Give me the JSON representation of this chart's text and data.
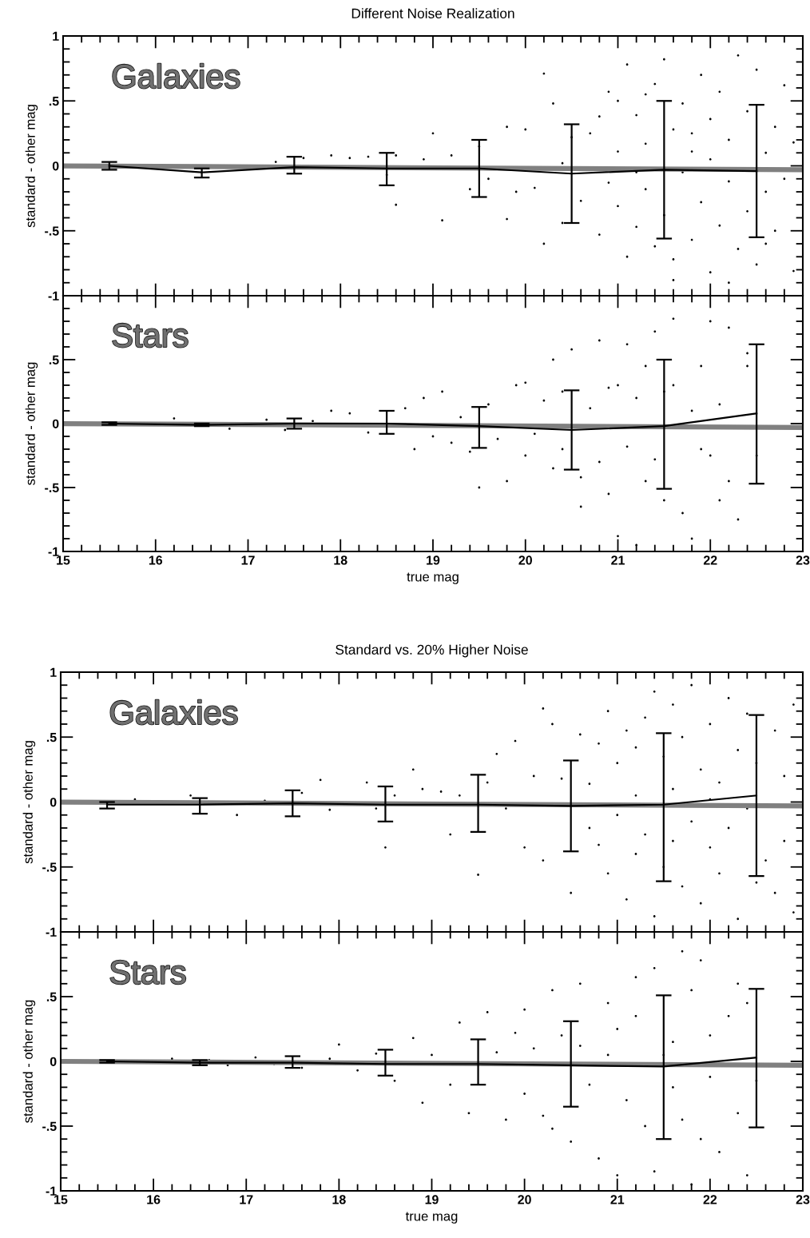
{
  "chart_data": [
    {
      "type": "scatter",
      "title": "Different Noise Realization",
      "ylabel": "standard - other mag",
      "annotations": [
        "Galaxies"
      ],
      "xlim": [
        15,
        23
      ],
      "ylim": [
        -1,
        1
      ],
      "tick_labels": "y",
      "grid": false,
      "xticks": [
        15,
        {
          "value": 15.2,
          "label": null
        },
        {
          "value": 15.4,
          "label": null
        },
        {
          "value": 15.6,
          "label": null
        },
        {
          "value": 15.8,
          "label": null
        },
        16,
        {
          "value": 16.2,
          "label": null
        },
        {
          "value": 16.4,
          "label": null
        },
        {
          "value": 16.6,
          "label": null
        },
        {
          "value": 16.8,
          "label": null
        },
        17,
        {
          "value": 17.2,
          "label": null
        },
        {
          "value": 17.4,
          "label": null
        },
        {
          "value": 17.6,
          "label": null
        },
        {
          "value": 17.8,
          "label": null
        },
        18,
        {
          "value": 18.2,
          "label": null
        },
        {
          "value": 18.4,
          "label": null
        },
        {
          "value": 18.6,
          "label": null
        },
        {
          "value": 18.8,
          "label": null
        },
        19,
        {
          "value": 19.2,
          "label": null
        },
        {
          "value": 19.4,
          "label": null
        },
        {
          "value": 19.6,
          "label": null
        },
        {
          "value": 19.8,
          "label": null
        },
        20,
        {
          "value": 20.2,
          "label": null
        },
        {
          "value": 20.4,
          "label": null
        },
        {
          "value": 20.6,
          "label": null
        },
        {
          "value": 20.8,
          "label": null
        },
        21,
        {
          "value": 21.2,
          "label": null
        },
        {
          "value": 21.4,
          "label": null
        },
        {
          "value": 21.6,
          "label": null
        },
        {
          "value": 21.8,
          "label": null
        },
        22,
        {
          "value": 22.2,
          "label": null
        },
        {
          "value": 22.4,
          "label": null
        },
        {
          "value": 22.6,
          "label": null
        },
        {
          "value": 22.8,
          "label": null
        },
        23
      ],
      "yticks": [
        {
          "value": -1,
          "label": "-1"
        },
        {
          "value": -0.9,
          "label": null
        },
        {
          "value": -0.8,
          "label": null
        },
        {
          "value": -0.7,
          "label": null
        },
        {
          "value": -0.6,
          "label": null
        },
        {
          "value": -0.5,
          "label": "-.5"
        },
        {
          "value": -0.4,
          "label": null
        },
        {
          "value": -0.3,
          "label": null
        },
        {
          "value": -0.2,
          "label": null
        },
        {
          "value": -0.1,
          "label": null
        },
        0,
        {
          "value": 0.1,
          "label": null
        },
        {
          "value": 0.2,
          "label": null
        },
        {
          "value": 0.3,
          "label": null
        },
        {
          "value": 0.4,
          "label": null
        },
        {
          "value": 0.5,
          "label": ".5"
        },
        {
          "value": 0.6,
          "label": null
        },
        {
          "value": 0.7,
          "label": null
        },
        {
          "value": 0.8,
          "label": null
        },
        {
          "value": 0.9,
          "label": null
        },
        1
      ],
      "series": [
        {
          "type": "scatter",
          "color": "#000000",
          "marker": "circle",
          "x": [
            17.3,
            17.6,
            17.9,
            18.1,
            18.3,
            18.6,
            18.9,
            18.5,
            18.6,
            19.0,
            19.2,
            19.1,
            19.5,
            19.4,
            19.6,
            19.8,
            19.9,
            19.8,
            20.0,
            20.1,
            20.2,
            20.3,
            20.2,
            20.4,
            20.4,
            20.5,
            20.6,
            20.7,
            20.8,
            20.8,
            20.9,
            20.9,
            21.0,
            21.0,
            21.1,
            21.1,
            21.2,
            21.2,
            21.3,
            21.3,
            21.4,
            21.4,
            21.5,
            21.5,
            21.6,
            21.6,
            21.7,
            21.7,
            21.8,
            21.8,
            21.9,
            21.9,
            22.0,
            22.0,
            22.1,
            22.1,
            22.2,
            22.2,
            22.3,
            22.3,
            22.4,
            22.4,
            22.5,
            22.5,
            22.6,
            22.6,
            22.7,
            22.7,
            22.8,
            22.8,
            22.9,
            22.9,
            21.3,
            21.6,
            22.0,
            21.2,
            22.6,
            22.2,
            21.0,
            21.8
          ],
          "values": [
            0.03,
            0.06,
            0.08,
            0.06,
            0.07,
            0.08,
            0.05,
            -0.07,
            -0.3,
            0.25,
            0.08,
            -0.42,
            0.15,
            -0.18,
            -0.1,
            0.3,
            -0.2,
            -0.41,
            0.28,
            -0.17,
            0.71,
            0.48,
            -0.6,
            0.02,
            -0.44,
            0.22,
            -0.27,
            0.25,
            0.38,
            -0.53,
            0.57,
            -0.13,
            0.11,
            -0.31,
            0.78,
            -0.7,
            0.39,
            -0.47,
            0.17,
            -0.18,
            0.63,
            -0.62,
            0.82,
            -0.38,
            0.28,
            -0.72,
            0.48,
            -0.05,
            0.11,
            -0.57,
            0.7,
            -0.28,
            0.36,
            -0.82,
            0.57,
            -0.46,
            0.2,
            -0.12,
            0.85,
            -0.64,
            0.42,
            -0.35,
            0.74,
            -0.76,
            0.1,
            -0.2,
            0.3,
            -0.5,
            0.62,
            -0.1,
            0.18,
            -0.81,
            0.55,
            -0.88,
            0.05,
            -0.05,
            -0.6,
            -0.9,
            0.5,
            0.25
          ]
        },
        {
          "type": "line",
          "color": "#808080",
          "marker": "none",
          "x": [
            15,
            23
          ],
          "values": [
            0,
            -0.03
          ]
        },
        {
          "type": "line",
          "color": "#000000",
          "marker": "none",
          "x": [
            15.5,
            16.5,
            17.5,
            18.5,
            19.5,
            20.5,
            21.5,
            22.5
          ],
          "values": [
            0,
            -0.05,
            -0.01,
            -0.02,
            -0.02,
            -0.06,
            -0.03,
            -0.04
          ],
          "errors": [
            [
              -0.03,
              0.03
            ],
            [
              -0.09,
              -0.02
            ],
            [
              -0.06,
              0.07
            ],
            [
              -0.15,
              0.1
            ],
            [
              -0.24,
              0.2
            ],
            [
              -0.44,
              0.32
            ],
            [
              -0.56,
              0.5
            ],
            [
              -0.55,
              0.47
            ]
          ]
        }
      ]
    },
    {
      "type": "scatter",
      "xlabel": "true mag",
      "ylabel": "standard - other mag",
      "annotations": [
        "Stars"
      ],
      "xlim": [
        15,
        23
      ],
      "ylim": [
        -1,
        1
      ],
      "grid": false,
      "xticks": [
        15,
        {
          "value": 15.2,
          "label": null
        },
        {
          "value": 15.4,
          "label": null
        },
        {
          "value": 15.6,
          "label": null
        },
        {
          "value": 15.8,
          "label": null
        },
        16,
        {
          "value": 16.2,
          "label": null
        },
        {
          "value": 16.4,
          "label": null
        },
        {
          "value": 16.6,
          "label": null
        },
        {
          "value": 16.8,
          "label": null
        },
        17,
        {
          "value": 17.2,
          "label": null
        },
        {
          "value": 17.4,
          "label": null
        },
        {
          "value": 17.6,
          "label": null
        },
        {
          "value": 17.8,
          "label": null
        },
        18,
        {
          "value": 18.2,
          "label": null
        },
        {
          "value": 18.4,
          "label": null
        },
        {
          "value": 18.6,
          "label": null
        },
        {
          "value": 18.8,
          "label": null
        },
        19,
        {
          "value": 19.2,
          "label": null
        },
        {
          "value": 19.4,
          "label": null
        },
        {
          "value": 19.6,
          "label": null
        },
        {
          "value": 19.8,
          "label": null
        },
        20,
        {
          "value": 20.2,
          "label": null
        },
        {
          "value": 20.4,
          "label": null
        },
        {
          "value": 20.6,
          "label": null
        },
        {
          "value": 20.8,
          "label": null
        },
        21,
        {
          "value": 21.2,
          "label": null
        },
        {
          "value": 21.4,
          "label": null
        },
        {
          "value": 21.6,
          "label": null
        },
        {
          "value": 21.8,
          "label": null
        },
        22,
        {
          "value": 22.2,
          "label": null
        },
        {
          "value": 22.4,
          "label": null
        },
        {
          "value": 22.6,
          "label": null
        },
        {
          "value": 22.8,
          "label": null
        },
        23
      ],
      "yticks": [
        {
          "value": -1,
          "label": "-1"
        },
        {
          "value": -0.9,
          "label": null
        },
        {
          "value": -0.8,
          "label": null
        },
        {
          "value": -0.7,
          "label": null
        },
        {
          "value": -0.6,
          "label": null
        },
        {
          "value": -0.5,
          "label": "-.5"
        },
        {
          "value": -0.4,
          "label": null
        },
        {
          "value": -0.3,
          "label": null
        },
        {
          "value": -0.2,
          "label": null
        },
        {
          "value": -0.1,
          "label": null
        },
        0,
        {
          "value": 0.1,
          "label": null
        },
        {
          "value": 0.2,
          "label": null
        },
        {
          "value": 0.3,
          "label": null
        },
        {
          "value": 0.4,
          "label": null
        },
        {
          "value": 0.5,
          "label": ".5"
        },
        {
          "value": 0.6,
          "label": null
        },
        {
          "value": 0.7,
          "label": null
        },
        {
          "value": 0.8,
          "label": null
        },
        {
          "value": 0.9,
          "label": null
        },
        {
          "value": 1,
          "label": null
        }
      ],
      "series": [
        {
          "type": "scatter",
          "color": "#000000",
          "marker": "circle",
          "x": [
            16.2,
            16.8,
            17.2,
            17.4,
            17.7,
            17.9,
            18.1,
            18.3,
            18.7,
            18.8,
            18.9,
            19.0,
            19.1,
            19.2,
            19.3,
            19.4,
            19.5,
            19.6,
            19.7,
            19.8,
            19.9,
            20.0,
            20.0,
            20.1,
            20.2,
            20.3,
            20.3,
            20.4,
            20.4,
            20.5,
            20.6,
            20.6,
            20.7,
            20.8,
            20.8,
            20.9,
            21.0,
            21.0,
            21.1,
            21.1,
            21.2,
            21.2,
            21.3,
            21.3,
            21.4,
            21.4,
            21.5,
            21.6,
            21.6,
            21.7,
            21.8,
            21.8,
            21.9,
            22.0,
            22.0,
            22.1,
            22.1,
            22.2,
            22.3,
            22.4,
            22.4,
            22.5,
            20.9,
            21.5,
            22.2,
            21.9
          ],
          "values": [
            0.04,
            -0.04,
            0.03,
            -0.05,
            0.02,
            0.1,
            0.08,
            -0.07,
            0.12,
            -0.2,
            0.2,
            -0.1,
            0.25,
            -0.15,
            0.05,
            -0.22,
            -0.5,
            0.15,
            -0.12,
            -0.45,
            0.3,
            0.32,
            -0.25,
            -0.08,
            0.18,
            0.5,
            -0.35,
            0.25,
            -0.2,
            0.58,
            -0.42,
            -0.65,
            0.12,
            -0.3,
            0.65,
            -0.55,
            0.3,
            -0.88,
            -0.18,
            0.62,
            0.2,
            -0.95,
            -0.45,
            0.45,
            0.72,
            -0.28,
            -0.6,
            0.3,
            0.82,
            -0.7,
            0.1,
            -0.9,
            0.45,
            0.8,
            -0.25,
            -0.6,
            0.15,
            0.75,
            -0.75,
            0.55,
            0.45,
            -0.25,
            0.28,
            0.25,
            -0.45,
            -0.2
          ]
        },
        {
          "type": "line",
          "color": "#808080",
          "marker": "none",
          "x": [
            15,
            23
          ],
          "values": [
            0,
            -0.03
          ]
        },
        {
          "type": "line",
          "color": "#000000",
          "marker": "none",
          "x": [
            15.5,
            16.5,
            17.5,
            18.5,
            19.5,
            20.5,
            21.5,
            22.5
          ],
          "values": [
            0,
            -0.01,
            0,
            0,
            -0.02,
            -0.05,
            -0.02,
            0.08
          ],
          "errors": [
            [
              -0.01,
              0.01
            ],
            [
              -0.02,
              0
            ],
            [
              -0.04,
              0.04
            ],
            [
              -0.08,
              0.1
            ],
            [
              -0.19,
              0.13
            ],
            [
              -0.36,
              0.26
            ],
            [
              -0.51,
              0.5
            ],
            [
              -0.47,
              0.62
            ]
          ]
        }
      ]
    },
    {
      "type": "scatter",
      "title": "Standard vs. 20% Higher Noise",
      "ylabel": "standard - other mag",
      "annotations": [
        "Galaxies"
      ],
      "xlim": [
        15,
        23
      ],
      "ylim": [
        -1,
        1
      ],
      "tick_labels": "y",
      "grid": false,
      "xticks": [
        15,
        {
          "value": 15.2,
          "label": null
        },
        {
          "value": 15.4,
          "label": null
        },
        {
          "value": 15.6,
          "label": null
        },
        {
          "value": 15.8,
          "label": null
        },
        16,
        {
          "value": 16.2,
          "label": null
        },
        {
          "value": 16.4,
          "label": null
        },
        {
          "value": 16.6,
          "label": null
        },
        {
          "value": 16.8,
          "label": null
        },
        17,
        {
          "value": 17.2,
          "label": null
        },
        {
          "value": 17.4,
          "label": null
        },
        {
          "value": 17.6,
          "label": null
        },
        {
          "value": 17.8,
          "label": null
        },
        18,
        {
          "value": 18.2,
          "label": null
        },
        {
          "value": 18.4,
          "label": null
        },
        {
          "value": 18.6,
          "label": null
        },
        {
          "value": 18.8,
          "label": null
        },
        19,
        {
          "value": 19.2,
          "label": null
        },
        {
          "value": 19.4,
          "label": null
        },
        {
          "value": 19.6,
          "label": null
        },
        {
          "value": 19.8,
          "label": null
        },
        20,
        {
          "value": 20.2,
          "label": null
        },
        {
          "value": 20.4,
          "label": null
        },
        {
          "value": 20.6,
          "label": null
        },
        {
          "value": 20.8,
          "label": null
        },
        21,
        {
          "value": 21.2,
          "label": null
        },
        {
          "value": 21.4,
          "label": null
        },
        {
          "value": 21.6,
          "label": null
        },
        {
          "value": 21.8,
          "label": null
        },
        22,
        {
          "value": 22.2,
          "label": null
        },
        {
          "value": 22.4,
          "label": null
        },
        {
          "value": 22.6,
          "label": null
        },
        {
          "value": 22.8,
          "label": null
        },
        23
      ],
      "yticks": [
        {
          "value": -1,
          "label": "-1"
        },
        {
          "value": -0.9,
          "label": null
        },
        {
          "value": -0.8,
          "label": null
        },
        {
          "value": -0.7,
          "label": null
        },
        {
          "value": -0.6,
          "label": null
        },
        {
          "value": -0.5,
          "label": "-.5"
        },
        {
          "value": -0.4,
          "label": null
        },
        {
          "value": -0.3,
          "label": null
        },
        {
          "value": -0.2,
          "label": null
        },
        {
          "value": -0.1,
          "label": null
        },
        0,
        {
          "value": 0.1,
          "label": null
        },
        {
          "value": 0.2,
          "label": null
        },
        {
          "value": 0.3,
          "label": null
        },
        {
          "value": 0.4,
          "label": null
        },
        {
          "value": 0.5,
          "label": ".5"
        },
        {
          "value": 0.6,
          "label": null
        },
        {
          "value": 0.7,
          "label": null
        },
        {
          "value": 0.8,
          "label": null
        },
        {
          "value": 0.9,
          "label": null
        },
        1
      ],
      "series": [
        {
          "type": "scatter",
          "color": "#000000",
          "marker": "circle",
          "x": [
            15.8,
            16.4,
            16.9,
            17.2,
            17.6,
            17.8,
            17.9,
            18.3,
            18.4,
            18.6,
            18.5,
            18.8,
            18.9,
            19.1,
            19.2,
            19.3,
            19.5,
            19.6,
            19.7,
            19.8,
            19.9,
            20.0,
            20.1,
            20.2,
            20.2,
            20.3,
            20.4,
            20.5,
            20.6,
            20.7,
            20.7,
            20.8,
            20.8,
            20.9,
            20.9,
            21.0,
            21.0,
            21.1,
            21.1,
            21.2,
            21.2,
            21.3,
            21.3,
            21.4,
            21.4,
            21.5,
            21.5,
            21.6,
            21.6,
            21.7,
            21.7,
            21.8,
            21.8,
            21.9,
            21.9,
            22.0,
            22.0,
            22.1,
            22.1,
            22.2,
            22.2,
            22.3,
            22.3,
            22.4,
            22.4,
            22.5,
            22.6,
            22.7,
            22.7,
            22.8,
            22.8,
            22.9,
            22.9,
            21.6,
            22.0,
            21.2,
            22.5
          ],
          "values": [
            0.02,
            0.05,
            -0.1,
            0.01,
            0.07,
            0.17,
            -0.06,
            0.15,
            -0.05,
            0.05,
            -0.35,
            0.25,
            0.1,
            0.08,
            -0.25,
            0.05,
            -0.56,
            0.15,
            0.37,
            -0.05,
            0.47,
            -0.35,
            0.2,
            0.72,
            -0.45,
            0.6,
            0.18,
            -0.7,
            0.52,
            0.14,
            -0.2,
            0.45,
            -0.33,
            0.7,
            -0.55,
            0.3,
            -0.1,
            0.55,
            -0.75,
            0.05,
            -0.4,
            0.65,
            -0.25,
            0.85,
            -0.88,
            0.35,
            -0.5,
            0.75,
            0.1,
            -0.65,
            0.5,
            -0.15,
            0.9,
            0.25,
            -0.78,
            0.6,
            -0.35,
            0.15,
            -0.55,
            0.8,
            -0.2,
            0.4,
            -0.9,
            0.68,
            -0.05,
            0.3,
            -0.45,
            0.55,
            -0.7,
            0.2,
            -0.3,
            0.75,
            -0.85,
            -0.3,
            0.02,
            0.42,
            -0.62
          ]
        },
        {
          "type": "line",
          "color": "#808080",
          "marker": "none",
          "x": [
            15,
            23
          ],
          "values": [
            0,
            -0.03
          ]
        },
        {
          "type": "line",
          "color": "#000000",
          "marker": "none",
          "x": [
            15.5,
            16.5,
            17.5,
            18.5,
            19.5,
            20.5,
            21.5,
            22.5
          ],
          "values": [
            -0.02,
            -0.02,
            -0.01,
            -0.02,
            -0.02,
            -0.03,
            -0.02,
            0.05
          ],
          "errors": [
            [
              -0.05,
              0
            ],
            [
              -0.09,
              0.03
            ],
            [
              -0.11,
              0.09
            ],
            [
              -0.15,
              0.12
            ],
            [
              -0.23,
              0.21
            ],
            [
              -0.38,
              0.32
            ],
            [
              -0.61,
              0.53
            ],
            [
              -0.57,
              0.67
            ]
          ]
        }
      ]
    },
    {
      "type": "scatter",
      "xlabel": "true mag",
      "ylabel": "standard - other mag",
      "annotations": [
        "Stars"
      ],
      "xlim": [
        15,
        23
      ],
      "ylim": [
        -1,
        1
      ],
      "grid": false,
      "xticks": [
        15,
        {
          "value": 15.2,
          "label": null
        },
        {
          "value": 15.4,
          "label": null
        },
        {
          "value": 15.6,
          "label": null
        },
        {
          "value": 15.8,
          "label": null
        },
        16,
        {
          "value": 16.2,
          "label": null
        },
        {
          "value": 16.4,
          "label": null
        },
        {
          "value": 16.6,
          "label": null
        },
        {
          "value": 16.8,
          "label": null
        },
        17,
        {
          "value": 17.2,
          "label": null
        },
        {
          "value": 17.4,
          "label": null
        },
        {
          "value": 17.6,
          "label": null
        },
        {
          "value": 17.8,
          "label": null
        },
        18,
        {
          "value": 18.2,
          "label": null
        },
        {
          "value": 18.4,
          "label": null
        },
        {
          "value": 18.6,
          "label": null
        },
        {
          "value": 18.8,
          "label": null
        },
        19,
        {
          "value": 19.2,
          "label": null
        },
        {
          "value": 19.4,
          "label": null
        },
        {
          "value": 19.6,
          "label": null
        },
        {
          "value": 19.8,
          "label": null
        },
        20,
        {
          "value": 20.2,
          "label": null
        },
        {
          "value": 20.4,
          "label": null
        },
        {
          "value": 20.6,
          "label": null
        },
        {
          "value": 20.8,
          "label": null
        },
        21,
        {
          "value": 21.2,
          "label": null
        },
        {
          "value": 21.4,
          "label": null
        },
        {
          "value": 21.6,
          "label": null
        },
        {
          "value": 21.8,
          "label": null
        },
        22,
        {
          "value": 22.2,
          "label": null
        },
        {
          "value": 22.4,
          "label": null
        },
        {
          "value": 22.6,
          "label": null
        },
        {
          "value": 22.8,
          "label": null
        },
        23
      ],
      "yticks": [
        {
          "value": -1,
          "label": "-1"
        },
        {
          "value": -0.9,
          "label": null
        },
        {
          "value": -0.8,
          "label": null
        },
        {
          "value": -0.7,
          "label": null
        },
        {
          "value": -0.6,
          "label": null
        },
        {
          "value": -0.5,
          "label": "-.5"
        },
        {
          "value": -0.4,
          "label": null
        },
        {
          "value": -0.3,
          "label": null
        },
        {
          "value": -0.2,
          "label": null
        },
        {
          "value": -0.1,
          "label": null
        },
        0,
        {
          "value": 0.1,
          "label": null
        },
        {
          "value": 0.2,
          "label": null
        },
        {
          "value": 0.3,
          "label": null
        },
        {
          "value": 0.4,
          "label": null
        },
        {
          "value": 0.5,
          "label": ".5"
        },
        {
          "value": 0.6,
          "label": null
        },
        {
          "value": 0.7,
          "label": null
        },
        {
          "value": 0.8,
          "label": null
        },
        {
          "value": 0.9,
          "label": null
        },
        {
          "value": 1,
          "label": null
        }
      ],
      "series": [
        {
          "type": "scatter",
          "color": "#000000",
          "marker": "circle",
          "x": [
            16.2,
            16.6,
            16.8,
            17.1,
            17.3,
            17.6,
            17.9,
            18.0,
            18.2,
            18.4,
            18.6,
            18.8,
            18.9,
            19.0,
            19.2,
            19.3,
            19.4,
            19.6,
            19.7,
            19.8,
            19.9,
            20.0,
            20.0,
            20.1,
            20.2,
            20.3,
            20.3,
            20.4,
            20.5,
            20.6,
            20.6,
            20.7,
            20.8,
            20.9,
            21.0,
            21.0,
            21.1,
            21.2,
            21.2,
            21.3,
            21.4,
            21.4,
            21.6,
            21.6,
            21.7,
            21.7,
            21.8,
            21.8,
            21.9,
            22.0,
            22.0,
            22.1,
            22.2,
            22.3,
            22.3,
            22.4,
            22.4,
            22.5,
            20.9,
            21.5,
            21.9
          ],
          "values": [
            0.02,
            0.01,
            -0.03,
            0.03,
            -0.02,
            -0.05,
            0.02,
            0.13,
            -0.07,
            0.06,
            -0.15,
            0.18,
            -0.32,
            0.05,
            -0.18,
            0.3,
            -0.4,
            0.38,
            0.07,
            -0.45,
            0.22,
            0.4,
            -0.25,
            0.1,
            -0.42,
            0.55,
            -0.52,
            0.2,
            -0.62,
            0.6,
            0.12,
            -0.18,
            -0.75,
            0.45,
            -0.88,
            0.25,
            -0.3,
            0.65,
            0.35,
            -0.5,
            0.72,
            -0.85,
            0.15,
            -0.2,
            0.85,
            -0.45,
            0.55,
            -0.95,
            0.78,
            -0.12,
            0.2,
            -0.7,
            0.35,
            -0.4,
            0.6,
            0.45,
            -0.88,
            -0.15,
            0.05,
            0.05,
            -0.6
          ]
        },
        {
          "type": "line",
          "color": "#808080",
          "marker": "none",
          "x": [
            15,
            23
          ],
          "values": [
            0,
            -0.03
          ]
        },
        {
          "type": "line",
          "color": "#000000",
          "marker": "none",
          "x": [
            15.5,
            16.5,
            17.5,
            18.5,
            19.5,
            20.5,
            21.5,
            22.5
          ],
          "values": [
            0,
            -0.01,
            -0.01,
            -0.02,
            -0.02,
            -0.03,
            -0.04,
            0.03
          ],
          "errors": [
            [
              -0.01,
              0.01
            ],
            [
              -0.03,
              0.01
            ],
            [
              -0.05,
              0.04
            ],
            [
              -0.11,
              0.09
            ],
            [
              -0.18,
              0.17
            ],
            [
              -0.35,
              0.31
            ],
            [
              -0.6,
              0.51
            ],
            [
              -0.51,
              0.56
            ]
          ]
        }
      ]
    }
  ]
}
